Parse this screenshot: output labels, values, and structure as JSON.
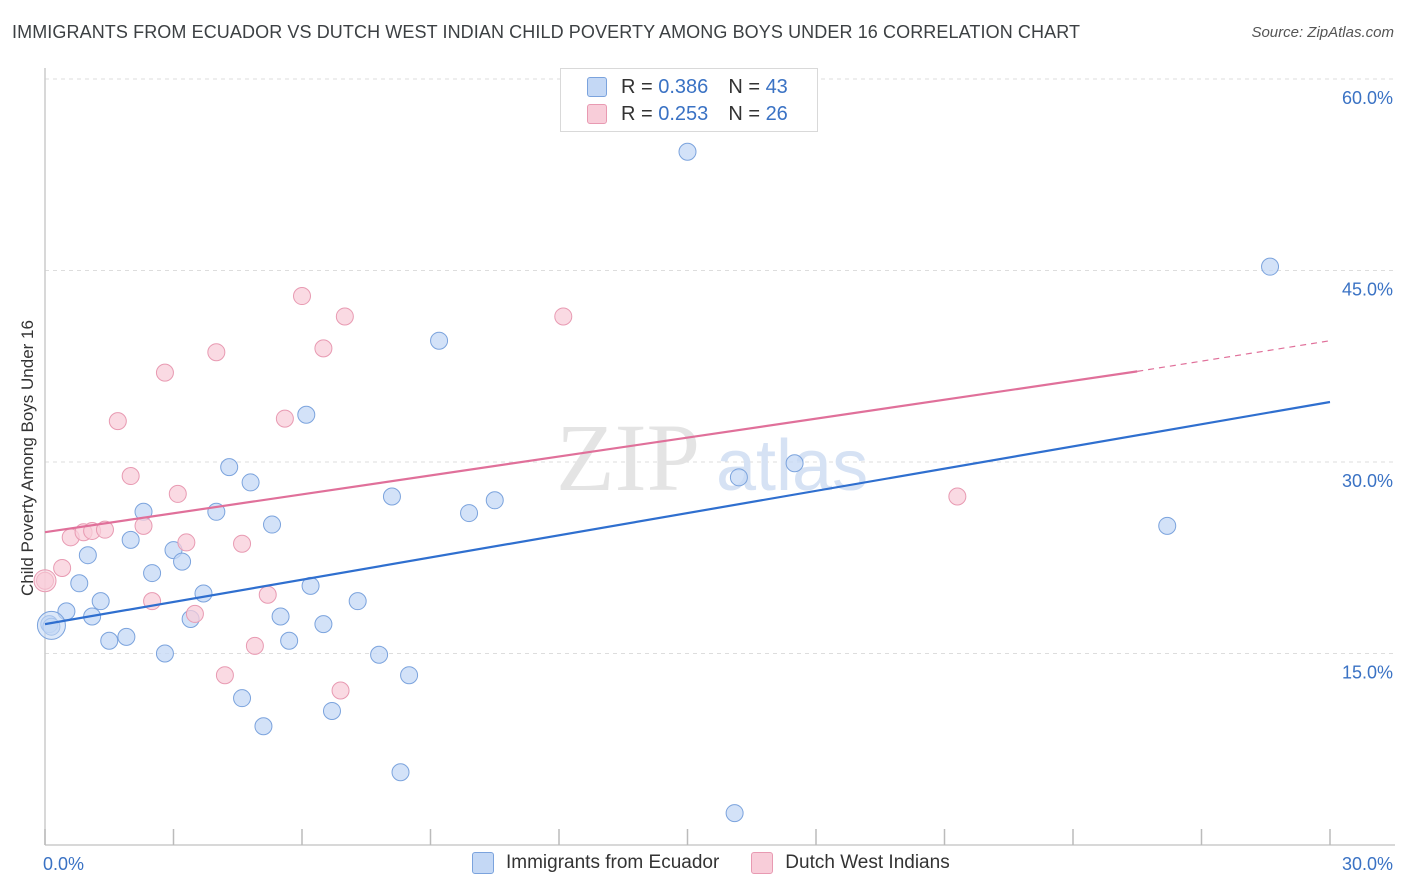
{
  "title": "IMMIGRANTS FROM ECUADOR VS DUTCH WEST INDIAN CHILD POVERTY AMONG BOYS UNDER 16 CORRELATION CHART",
  "source": "Source: ZipAtlas.com",
  "watermark": {
    "zip": "ZIP",
    "atlas": "atlas"
  },
  "legend_top": [
    {
      "r_label": "R =",
      "r_value": "0.386",
      "n_label": "N =",
      "n_value": "43"
    },
    {
      "r_label": "R =",
      "r_value": "0.253",
      "n_label": "N =",
      "n_value": "26"
    }
  ],
  "legend_bottom": [
    "Immigrants from Ecuador",
    "Dutch West Indians"
  ],
  "colors": {
    "blue_fill": "#c4d8f5",
    "blue_stroke": "#7ba3dd",
    "blue_line": "#2f6fcf",
    "pink_fill": "#f8cdd9",
    "pink_stroke": "#e89ab2",
    "pink_line": "#e0709a",
    "tick_label": "#3a72c4",
    "grid": "#dddddd"
  },
  "chart_data": {
    "type": "scatter",
    "title": "IMMIGRANTS FROM ECUADOR VS DUTCH WEST INDIAN CHILD POVERTY AMONG BOYS UNDER 16 CORRELATION CHART",
    "xlabel": "",
    "ylabel": "Child Poverty Among Boys Under 16",
    "xlim": [
      0,
      30
    ],
    "ylim": [
      0,
      60
    ],
    "x_tick_labels": [
      "0.0%",
      "30.0%"
    ],
    "y_ticks": [
      15,
      30,
      45,
      60
    ],
    "y_tick_labels": [
      "15.0%",
      "30.0%",
      "45.0%",
      "60.0%"
    ],
    "grid": true,
    "series": [
      {
        "name": "Immigrants from Ecuador",
        "color": "#2f6fcf",
        "R": 0.386,
        "N": 43,
        "points": [
          [
            0.1,
            17.3
          ],
          [
            0.5,
            18.3
          ],
          [
            0.8,
            20.5
          ],
          [
            1.0,
            22.7
          ],
          [
            1.1,
            17.9
          ],
          [
            1.3,
            19.1
          ],
          [
            1.5,
            16.0
          ],
          [
            1.9,
            16.3
          ],
          [
            2.0,
            23.9
          ],
          [
            2.3,
            26.1
          ],
          [
            2.5,
            21.3
          ],
          [
            2.8,
            15.0
          ],
          [
            3.0,
            23.1
          ],
          [
            3.2,
            22.2
          ],
          [
            3.4,
            17.7
          ],
          [
            3.7,
            19.7
          ],
          [
            4.0,
            26.1
          ],
          [
            4.3,
            29.6
          ],
          [
            4.6,
            11.5
          ],
          [
            4.8,
            28.4
          ],
          [
            5.1,
            9.3
          ],
          [
            5.3,
            25.1
          ],
          [
            5.5,
            17.9
          ],
          [
            5.7,
            16.0
          ],
          [
            6.1,
            33.7
          ],
          [
            6.2,
            20.3
          ],
          [
            6.5,
            17.3
          ],
          [
            6.7,
            10.5
          ],
          [
            7.3,
            19.1
          ],
          [
            7.8,
            14.9
          ],
          [
            8.1,
            27.3
          ],
          [
            8.3,
            5.7
          ],
          [
            8.5,
            13.3
          ],
          [
            9.2,
            39.5
          ],
          [
            9.9,
            26.0
          ],
          [
            10.5,
            27.0
          ],
          [
            15.0,
            54.3
          ],
          [
            16.1,
            2.5
          ],
          [
            16.2,
            28.8
          ],
          [
            17.5,
            29.9
          ],
          [
            26.2,
            25.0
          ],
          [
            28.6,
            45.3
          ],
          [
            0.15,
            17.1
          ]
        ],
        "trend": {
          "x1": 0,
          "y1": 17.3,
          "x2": 30,
          "y2": 34.7
        }
      },
      {
        "name": "Dutch West Indians",
        "color": "#e0709a",
        "R": 0.253,
        "N": 26,
        "points": [
          [
            0.0,
            20.7
          ],
          [
            0.4,
            21.7
          ],
          [
            0.6,
            24.1
          ],
          [
            0.9,
            24.5
          ],
          [
            1.1,
            24.6
          ],
          [
            1.4,
            24.7
          ],
          [
            1.7,
            33.2
          ],
          [
            2.0,
            28.9
          ],
          [
            2.3,
            25.0
          ],
          [
            2.5,
            19.1
          ],
          [
            2.8,
            37.0
          ],
          [
            3.1,
            27.5
          ],
          [
            3.3,
            23.7
          ],
          [
            3.5,
            18.1
          ],
          [
            4.0,
            38.6
          ],
          [
            4.2,
            13.3
          ],
          [
            4.6,
            23.6
          ],
          [
            4.9,
            15.6
          ],
          [
            5.2,
            19.6
          ],
          [
            5.6,
            33.4
          ],
          [
            6.0,
            43.0
          ],
          [
            6.5,
            38.9
          ],
          [
            6.9,
            12.1
          ],
          [
            7.0,
            41.4
          ],
          [
            12.1,
            41.4
          ],
          [
            21.3,
            27.3
          ]
        ],
        "trend": {
          "x1": 0,
          "y1": 24.5,
          "x2": 25.5,
          "y2": 37.1
        },
        "trend_dashed": {
          "x1": 25.5,
          "y1": 37.1,
          "x2": 30,
          "y2": 39.5
        }
      }
    ]
  }
}
